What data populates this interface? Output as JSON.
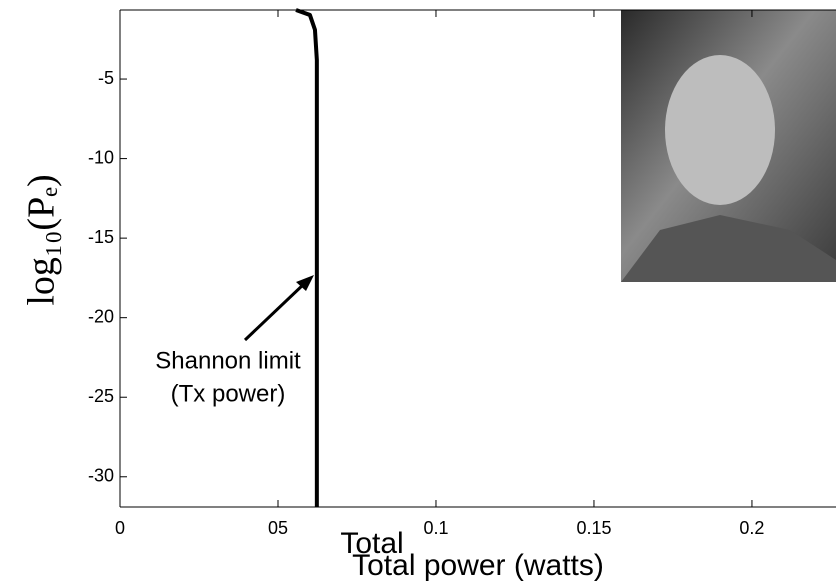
{
  "chart_data": {
    "type": "line",
    "xlabel": "Total power (watts)",
    "xlabel_overlap": "Total",
    "ylabel": "log₁₀(Pₑ)",
    "annotation": [
      "Shannon limit",
      "(Tx power)"
    ],
    "x": [
      0.0557,
      0.0601,
      0.0617,
      0.0623,
      0.0623
    ],
    "series": [
      {
        "name": "Shannon limit",
        "color": "#000000",
        "values": [
          -0.66,
          -0.97,
          -1.9,
          -3.8,
          -31.9
        ]
      }
    ],
    "xlim": [
      0,
      0.2266
    ],
    "ylim": [
      -31.9,
      -0.66
    ],
    "xticks": [
      0,
      {
        "value": 0.05,
        "label": "05"
      },
      0.1,
      0.15,
      0.2
    ],
    "yticks": [
      -5,
      -10,
      -15,
      -20,
      -25,
      -30
    ],
    "grid": false
  }
}
